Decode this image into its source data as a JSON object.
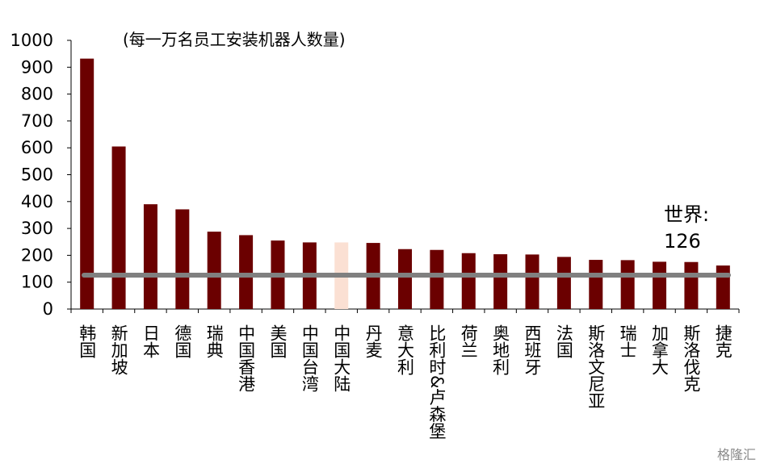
{
  "chart_data": {
    "type": "bar",
    "title": "(每一万名员工安装机器人数量)",
    "categories": [
      "韩国",
      "新加坡",
      "日本",
      "德国",
      "瑞典",
      "中国香港",
      "美国",
      "中国台湾",
      "中国大陆",
      "丹麦",
      "意大利",
      "比利时&卢森堡",
      "荷兰",
      "奥地利",
      "西班牙",
      "法国",
      "斯洛文尼亚",
      "瑞士",
      "加拿大",
      "斯洛伐克",
      "捷克"
    ],
    "values": [
      932,
      605,
      390,
      371,
      288,
      275,
      255,
      248,
      248,
      246,
      223,
      220,
      208,
      204,
      203,
      194,
      183,
      182,
      176,
      175,
      162
    ],
    "highlight_category": "中国大陆",
    "colors": {
      "bar": "#6b0000",
      "highlight": "#fbe0d3",
      "reference_line": "#808080"
    },
    "ylim": [
      0,
      1000
    ],
    "yticks": [
      0,
      100,
      200,
      300,
      400,
      500,
      600,
      700,
      800,
      900,
      1000
    ],
    "reference_line": {
      "label": "世界:",
      "value": 126,
      "value_text": "126"
    },
    "grid": false,
    "legend": "none"
  },
  "watermark": "格隆汇"
}
